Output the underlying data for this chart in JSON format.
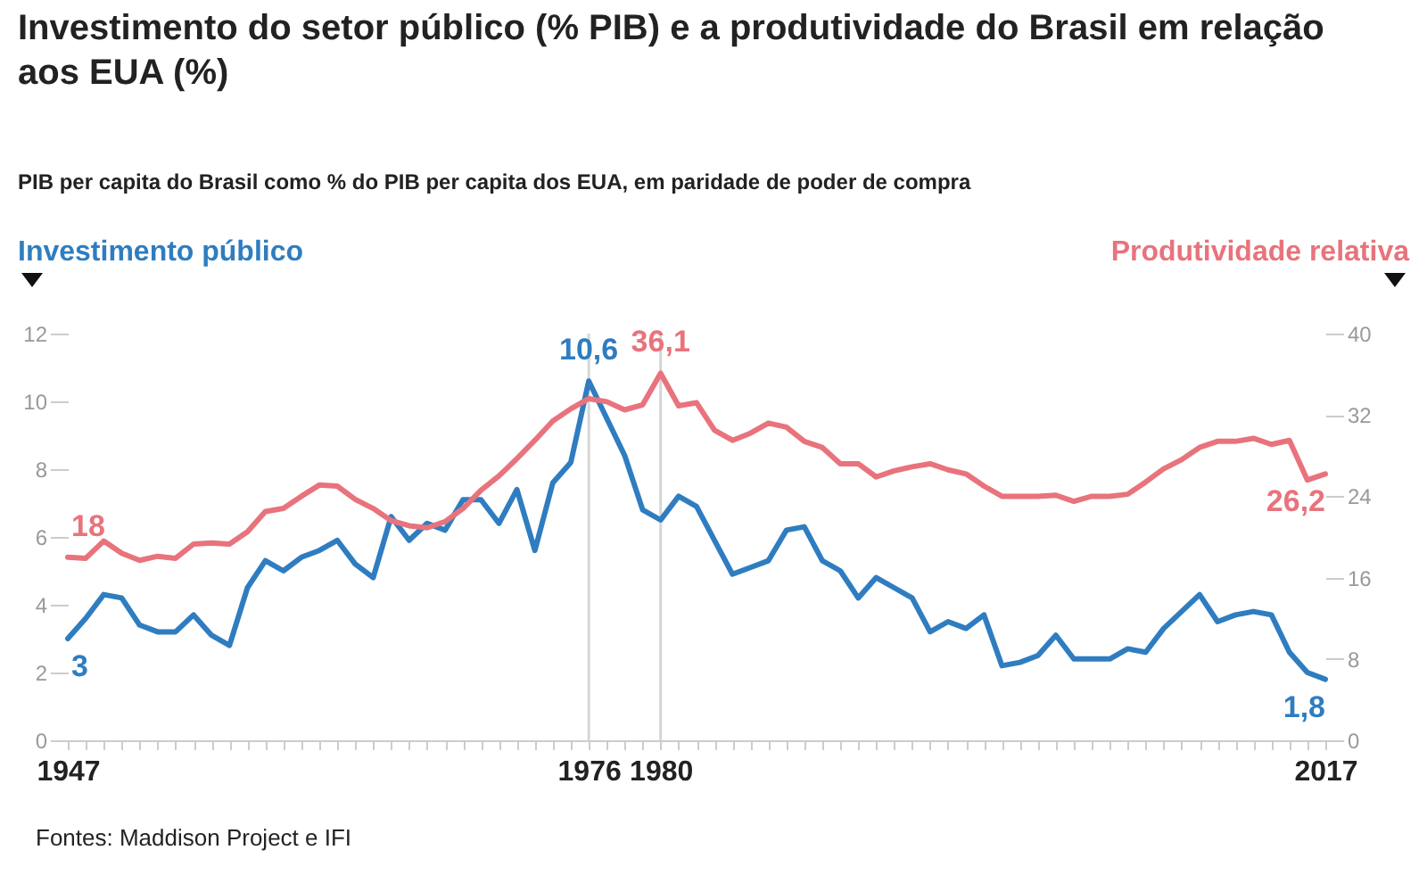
{
  "chart_data": {
    "type": "line",
    "title": "Investimento do setor público (% PIB) e a produtividade do Brasil em relação aos EUA (%)",
    "subtitle": "PIB per capita do Brasil como % do PIB per capita dos EUA, em paridade de poder de compra",
    "ylabel": "Investimento público",
    "y2label": "Produtividade relativa",
    "annotations": [
      "Fontes: Maddison Project e IFI"
    ],
    "x": [
      1947,
      1948,
      1949,
      1950,
      1951,
      1952,
      1953,
      1954,
      1955,
      1956,
      1957,
      1958,
      1959,
      1960,
      1961,
      1962,
      1963,
      1964,
      1965,
      1966,
      1967,
      1968,
      1969,
      1970,
      1971,
      1972,
      1973,
      1974,
      1975,
      1976,
      1977,
      1978,
      1979,
      1980,
      1981,
      1982,
      1983,
      1984,
      1985,
      1986,
      1987,
      1988,
      1989,
      1990,
      1991,
      1992,
      1993,
      1994,
      1995,
      1996,
      1997,
      1998,
      1999,
      2000,
      2001,
      2002,
      2003,
      2004,
      2005,
      2006,
      2007,
      2008,
      2009,
      2010,
      2011,
      2012,
      2013,
      2014,
      2015,
      2016,
      2017
    ],
    "series": [
      {
        "color": "#2f7dc0",
        "values": [
          3,
          3.6,
          4.3,
          4.2,
          3.4,
          3.2,
          3.2,
          3.7,
          3.1,
          2.8,
          4.5,
          5.3,
          5,
          5.4,
          5.6,
          5.9,
          5.2,
          4.8,
          6.6,
          5.9,
          6.4,
          6.2,
          7.1,
          7.1,
          6.4,
          7.4,
          5.6,
          7.6,
          8.2,
          10.6,
          9.5,
          8.4,
          6.8,
          6.5,
          7.2,
          6.9,
          5.9,
          4.9,
          5.1,
          5.3,
          6.2,
          6.3,
          5.3,
          5,
          4.2,
          4.8,
          4.5,
          4.2,
          3.2,
          3.5,
          3.3,
          3.7,
          2.2,
          2.3,
          2.5,
          3.1,
          2.4,
          2.4,
          2.4,
          2.7,
          2.6,
          3.3,
          3.8,
          4.3,
          3.5,
          3.7,
          3.8,
          3.7,
          2.6,
          2,
          1.8
        ],
        "value_labels": [
          "3",
          null,
          null,
          null,
          null,
          null,
          null,
          null,
          null,
          null,
          null,
          null,
          null,
          null,
          null,
          null,
          null,
          null,
          null,
          null,
          null,
          null,
          null,
          null,
          null,
          null,
          null,
          null,
          null,
          "10,6",
          null,
          null,
          null,
          null,
          null,
          null,
          null,
          null,
          null,
          null,
          null,
          null,
          null,
          null,
          null,
          null,
          null,
          null,
          null,
          null,
          null,
          null,
          null,
          null,
          null,
          null,
          null,
          null,
          null,
          null,
          null,
          null,
          null,
          null,
          null,
          null,
          null,
          null,
          null,
          null,
          "1,8"
        ]
      },
      {
        "color": "#e8737c",
        "axis": "y2",
        "values": [
          18,
          17.9,
          19.6,
          18.4,
          17.7,
          18.1,
          17.9,
          19.3,
          19.4,
          19.3,
          20.5,
          22.5,
          22.8,
          24,
          25.1,
          25,
          23.7,
          22.8,
          21.6,
          21.1,
          20.9,
          21.5,
          22.8,
          24.6,
          26,
          27.7,
          29.5,
          31.4,
          32.6,
          33.6,
          33.3,
          32.5,
          33,
          36.1,
          32.9,
          33.2,
          30.5,
          29.5,
          30.2,
          31.2,
          30.8,
          29.4,
          28.8,
          27.2,
          27.2,
          25.9,
          26.5,
          26.9,
          27.2,
          26.6,
          26.2,
          25,
          24,
          24,
          24,
          24.1,
          23.5,
          24,
          24,
          24.2,
          25.4,
          26.7,
          27.6,
          28.8,
          29.4,
          29.4,
          29.7,
          29.1,
          29.5,
          25.6,
          26.2
        ],
        "value_labels": [
          "18",
          null,
          null,
          null,
          null,
          null,
          null,
          null,
          null,
          null,
          null,
          null,
          null,
          null,
          null,
          null,
          null,
          null,
          null,
          null,
          null,
          null,
          null,
          null,
          null,
          null,
          null,
          null,
          null,
          null,
          null,
          null,
          null,
          "36,1",
          null,
          null,
          null,
          null,
          null,
          null,
          null,
          null,
          null,
          null,
          null,
          null,
          null,
          null,
          null,
          null,
          null,
          null,
          null,
          null,
          null,
          null,
          null,
          null,
          null,
          null,
          null,
          null,
          null,
          null,
          null,
          null,
          null,
          null,
          null,
          null,
          "26,2"
        ]
      }
    ],
    "xlim": [
      1947,
      2017
    ],
    "xticks": [
      1947,
      {
        "value": 1948,
        "label": null
      },
      {
        "value": 1949,
        "label": null
      },
      {
        "value": 1950,
        "label": null
      },
      {
        "value": 1951,
        "label": null
      },
      {
        "value": 1952,
        "label": null
      },
      {
        "value": 1953,
        "label": null
      },
      {
        "value": 1954,
        "label": null
      },
      {
        "value": 1955,
        "label": null
      },
      {
        "value": 1956,
        "label": null
      },
      {
        "value": 1957,
        "label": null
      },
      {
        "value": 1958,
        "label": null
      },
      {
        "value": 1959,
        "label": null
      },
      {
        "value": 1960,
        "label": null
      },
      {
        "value": 1961,
        "label": null
      },
      {
        "value": 1962,
        "label": null
      },
      {
        "value": 1963,
        "label": null
      },
      {
        "value": 1964,
        "label": null
      },
      {
        "value": 1965,
        "label": null
      },
      {
        "value": 1966,
        "label": null
      },
      {
        "value": 1967,
        "label": null
      },
      {
        "value": 1968,
        "label": null
      },
      {
        "value": 1969,
        "label": null
      },
      {
        "value": 1970,
        "label": null
      },
      {
        "value": 1971,
        "label": null
      },
      {
        "value": 1972,
        "label": null
      },
      {
        "value": 1973,
        "label": null
      },
      {
        "value": 1974,
        "label": null
      },
      {
        "value": 1975,
        "label": null
      },
      1976,
      {
        "value": 1977,
        "label": null
      },
      {
        "value": 1978,
        "label": null
      },
      {
        "value": 1979,
        "label": null
      },
      1980,
      {
        "value": 1981,
        "label": null
      },
      {
        "value": 1982,
        "label": null
      },
      {
        "value": 1983,
        "label": null
      },
      {
        "value": 1984,
        "label": null
      },
      {
        "value": 1985,
        "label": null
      },
      {
        "value": 1986,
        "label": null
      },
      {
        "value": 1987,
        "label": null
      },
      {
        "value": 1988,
        "label": null
      },
      {
        "value": 1989,
        "label": null
      },
      {
        "value": 1990,
        "label": null
      },
      {
        "value": 1991,
        "label": null
      },
      {
        "value": 1992,
        "label": null
      },
      {
        "value": 1993,
        "label": null
      },
      {
        "value": 1994,
        "label": null
      },
      {
        "value": 1995,
        "label": null
      },
      {
        "value": 1996,
        "label": null
      },
      {
        "value": 1997,
        "label": null
      },
      {
        "value": 1998,
        "label": null
      },
      {
        "value": 1999,
        "label": null
      },
      {
        "value": 2000,
        "label": null
      },
      {
        "value": 2001,
        "label": null
      },
      {
        "value": 2002,
        "label": null
      },
      {
        "value": 2003,
        "label": null
      },
      {
        "value": 2004,
        "label": null
      },
      {
        "value": 2005,
        "label": null
      },
      {
        "value": 2006,
        "label": null
      },
      {
        "value": 2007,
        "label": null
      },
      {
        "value": 2008,
        "label": null
      },
      {
        "value": 2009,
        "label": null
      },
      {
        "value": 2010,
        "label": null
      },
      {
        "value": 2011,
        "label": null
      },
      {
        "value": 2012,
        "label": null
      },
      {
        "value": 2013,
        "label": null
      },
      {
        "value": 2014,
        "label": null
      },
      {
        "value": 2015,
        "label": null
      },
      {
        "value": 2016,
        "label": null
      },
      2017
    ],
    "ylim": [
      0,
      12
    ],
    "yticks": [
      0,
      2,
      4,
      6,
      8,
      10,
      12
    ],
    "y2lim": [
      0,
      40
    ],
    "y2ticks": [
      0,
      8,
      16,
      24,
      32,
      40
    ],
    "ref_lines": [
      {
        "axis": "x",
        "value": 1976
      },
      {
        "axis": "x",
        "value": 1980
      }
    ]
  }
}
